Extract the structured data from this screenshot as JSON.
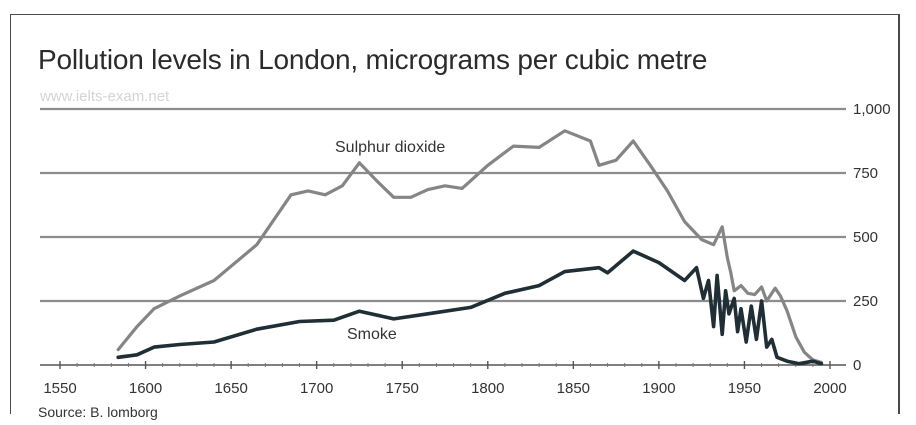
{
  "title": "Pollution levels in London, micrograms per cubic metre",
  "watermark": "www.ielts-exam.net",
  "source": "Source: B. lomborg",
  "colors": {
    "sulphur": "#858585",
    "smoke": "#1f2f35",
    "grid": "#8c8c8c",
    "frame": "#4a4a4a"
  },
  "chart_data": {
    "type": "line",
    "title": "Pollution levels in London, micrograms per cubic metre",
    "xlabel": "",
    "ylabel": "",
    "xlim": [
      1550,
      2000
    ],
    "ylim": [
      0,
      1000
    ],
    "x_ticks": [
      "1550",
      "1600",
      "1650",
      "1700",
      "1750",
      "1800",
      "1850",
      "1900",
      "1950",
      "2000"
    ],
    "y_ticks": [
      "0",
      "250",
      "500",
      "750",
      "1,000"
    ],
    "y_axis_side": "right",
    "grid": true,
    "series": [
      {
        "name": "Sulphur dioxide",
        "color": "#858585",
        "x": [
          1584,
          1595,
          1605,
          1620,
          1640,
          1665,
          1685,
          1695,
          1705,
          1715,
          1725,
          1735,
          1745,
          1755,
          1765,
          1775,
          1785,
          1800,
          1815,
          1830,
          1845,
          1860,
          1865,
          1875,
          1885,
          1895,
          1905,
          1915,
          1925,
          1932,
          1937,
          1940,
          1942,
          1944,
          1948,
          1952,
          1956,
          1960,
          1963,
          1966,
          1968,
          1971,
          1975,
          1980,
          1985,
          1990,
          1995
        ],
        "y": [
          60,
          150,
          220,
          270,
          330,
          470,
          665,
          680,
          665,
          700,
          790,
          720,
          655,
          655,
          685,
          700,
          690,
          780,
          855,
          850,
          915,
          875,
          780,
          800,
          875,
          780,
          680,
          560,
          490,
          470,
          540,
          420,
          360,
          290,
          310,
          280,
          275,
          305,
          250,
          280,
          300,
          270,
          210,
          110,
          50,
          20,
          10
        ]
      },
      {
        "name": "Smoke",
        "color": "#1f2f35",
        "x": [
          1584,
          1595,
          1605,
          1620,
          1640,
          1665,
          1690,
          1710,
          1725,
          1745,
          1765,
          1790,
          1810,
          1830,
          1845,
          1865,
          1870,
          1885,
          1900,
          1915,
          1922,
          1926,
          1929,
          1932,
          1934,
          1937,
          1939,
          1941,
          1944,
          1946,
          1948,
          1951,
          1954,
          1957,
          1960,
          1963,
          1966,
          1969,
          1975,
          1982,
          1990,
          1995
        ],
        "y": [
          30,
          40,
          70,
          80,
          90,
          140,
          170,
          175,
          210,
          180,
          200,
          225,
          280,
          310,
          365,
          380,
          360,
          445,
          400,
          330,
          380,
          260,
          330,
          150,
          350,
          120,
          290,
          200,
          260,
          130,
          220,
          90,
          230,
          100,
          250,
          70,
          100,
          30,
          15,
          5,
          15,
          5
        ]
      }
    ],
    "annotations": [
      "Sulphur dioxide",
      "Smoke"
    ]
  }
}
